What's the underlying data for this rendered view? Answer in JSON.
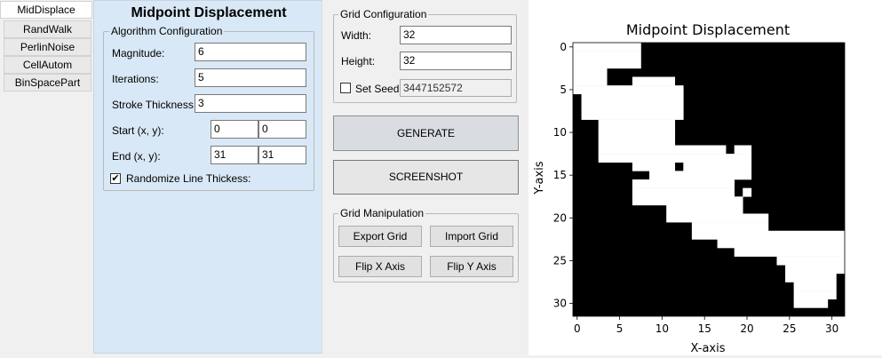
{
  "tabs": [
    "MidDisplace",
    "RandWalk",
    "PerlinNoise",
    "CellAutom",
    "BinSpacePart"
  ],
  "panel": {
    "title": "Midpoint Displacement",
    "algo_legend": "Algorithm Configuration",
    "magnitude_label": "Magnitude:",
    "magnitude": "6",
    "iterations_label": "Iterations:",
    "iterations": "5",
    "stroke_label": "Stroke Thickness:",
    "stroke": "3",
    "start_label": "Start (x, y):",
    "start_x": "0",
    "start_y": "0",
    "end_label": "End (x, y):",
    "end_x": "31",
    "end_y": "31",
    "randomize_label": "Randomize Line Thickess:",
    "randomize_checked": "✔"
  },
  "grid_config": {
    "legend": "Grid Configuration",
    "width_label": "Width:",
    "width": "32",
    "height_label": "Height:",
    "height": "32",
    "seed_label": "Set Seed",
    "seed": "3447152572"
  },
  "buttons": {
    "generate": "GENERATE",
    "screenshot": "SCREENSHOT"
  },
  "grid_manip": {
    "legend": "Grid Manipulation",
    "export": "Export Grid",
    "import": "Import Grid",
    "flip_x": "Flip X Axis",
    "flip_y": "Flip Y Axis"
  },
  "chart_data": {
    "type": "heatmap",
    "title": "Midpoint Displacement",
    "xlabel": "X-axis",
    "ylabel": "Y-axis",
    "xticks": [
      0,
      5,
      10,
      15,
      20,
      25,
      30
    ],
    "yticks": [
      0,
      5,
      10,
      15,
      20,
      25,
      30
    ],
    "xlim": [
      -0.5,
      31.5
    ],
    "ylim": [
      31.5,
      -0.5
    ],
    "colormap": {
      "0": "#000000",
      "1": "#ffffff"
    },
    "white_runs": [
      [
        [
          0,
          7
        ]
      ],
      [
        [
          0,
          7
        ]
      ],
      [
        [
          0,
          7
        ]
      ],
      [
        [
          0,
          3
        ]
      ],
      [
        [
          0,
          3
        ],
        [
          7,
          11
        ]
      ],
      [
        [
          0,
          12
        ]
      ],
      [
        [
          1,
          12
        ]
      ],
      [
        [
          1,
          12
        ]
      ],
      [
        [
          1,
          12
        ]
      ],
      [
        [
          3,
          11
        ]
      ],
      [
        [
          3,
          11
        ]
      ],
      [
        [
          3,
          11
        ]
      ],
      [
        [
          3,
          17
        ],
        [
          19,
          20
        ]
      ],
      [
        [
          3,
          20
        ]
      ],
      [
        [
          7,
          11
        ],
        [
          13,
          20
        ]
      ],
      [
        [
          9,
          20
        ]
      ],
      [
        [
          7,
          18
        ]
      ],
      [
        [
          7,
          18
        ],
        [
          20,
          20
        ]
      ],
      [
        [
          7,
          19
        ]
      ],
      [
        [
          11,
          19
        ]
      ],
      [
        [
          11,
          22
        ]
      ],
      [
        [
          14,
          22
        ]
      ],
      [
        [
          14,
          31
        ]
      ],
      [
        [
          17,
          31
        ]
      ],
      [
        [
          19,
          31
        ]
      ],
      [
        [
          24,
          31
        ]
      ],
      [
        [
          25,
          31
        ]
      ],
      [
        [
          25,
          30
        ]
      ],
      [
        [
          26,
          30
        ]
      ],
      [
        [
          26,
          30
        ]
      ],
      [
        [
          26,
          29
        ]
      ],
      []
    ]
  }
}
